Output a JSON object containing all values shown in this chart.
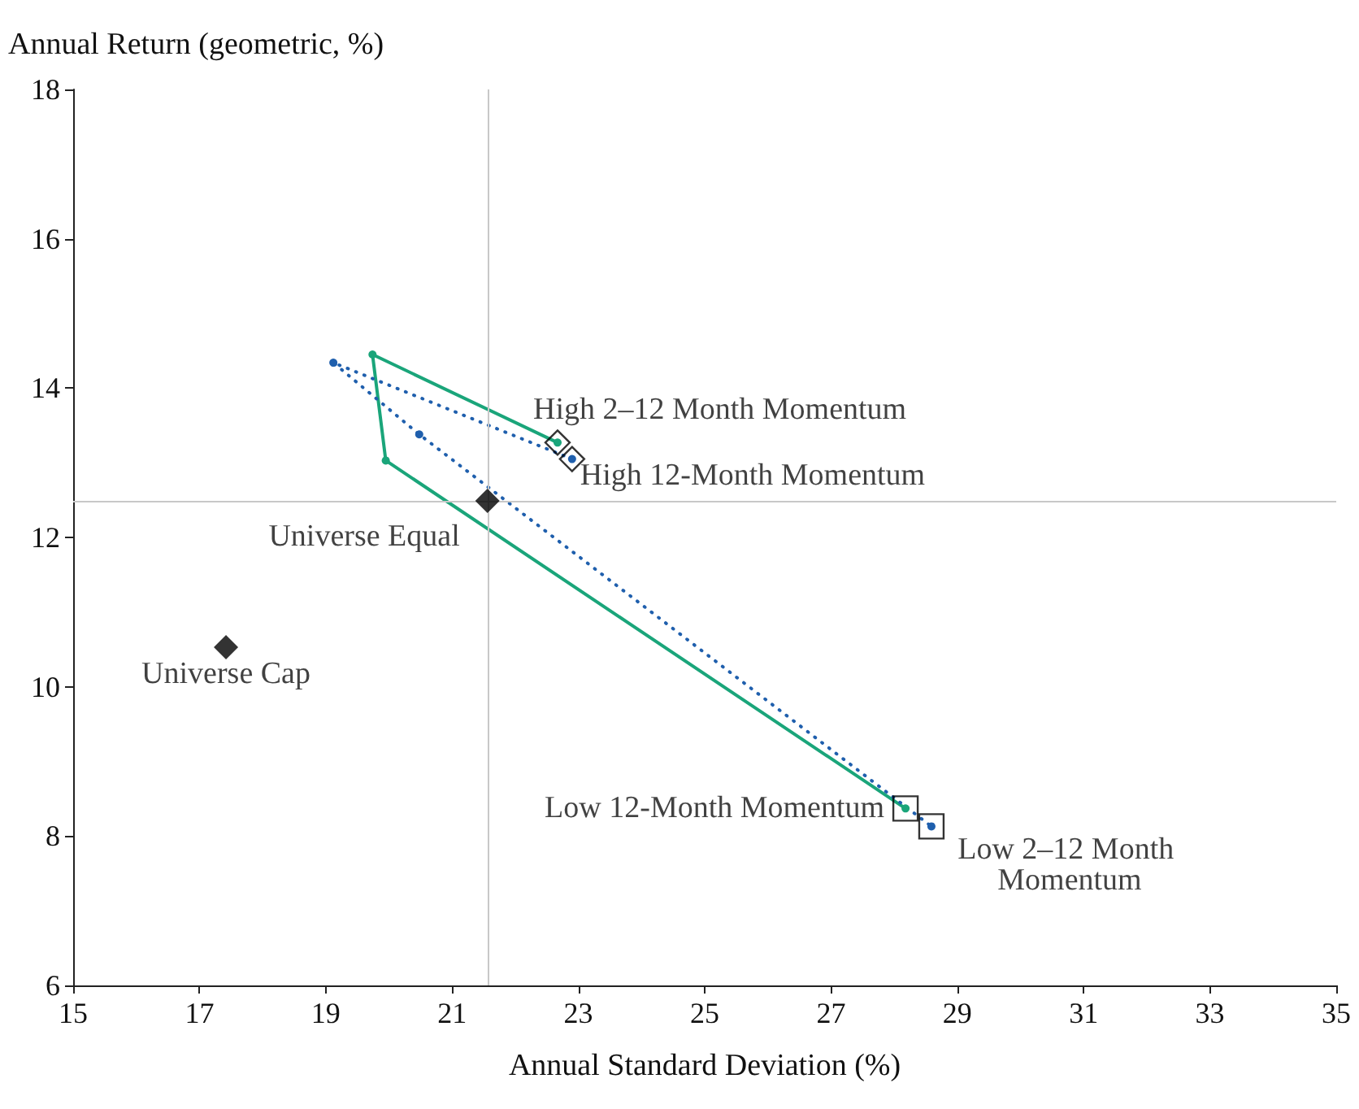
{
  "chart_data": {
    "type": "line",
    "xlabel": "Annual Standard Deviation (%)",
    "ylabel": "Annual Return (geometric, %)",
    "xlim": [
      15,
      35
    ],
    "xticks": [
      15,
      17,
      19,
      21,
      23,
      25,
      27,
      29,
      31,
      33,
      35
    ],
    "ylim": [
      6,
      18
    ],
    "yticks": [
      6,
      8,
      10,
      12,
      14,
      16,
      18
    ],
    "grid": false,
    "series": [
      {
        "type": "line",
        "color": "#1aa57a",
        "line_style": "solid",
        "marker": "circle",
        "x": [
          22.67,
          19.74,
          19.95,
          28.18
        ],
        "values": [
          13.27,
          14.45,
          13.03,
          8.37
        ]
      },
      {
        "type": "line",
        "color": "#1f5fad",
        "line_style": "dotted",
        "marker": "circle",
        "x": [
          22.9,
          19.12,
          20.48,
          28.59
        ],
        "values": [
          13.05,
          14.34,
          13.38,
          8.13
        ]
      },
      {
        "type": "scatter",
        "color": "#000000",
        "marker": "diamond",
        "x": [
          21.56,
          17.42
        ],
        "values": [
          12.49,
          10.53
        ]
      },
      {
        "type": "scatter",
        "color": "#000000",
        "marker": "diamond",
        "x": [
          22.67,
          22.9
        ],
        "values": [
          13.27,
          13.05
        ]
      },
      {
        "type": "scatter",
        "color": "#000000",
        "marker": "square",
        "x": [
          28.18,
          28.59
        ],
        "values": [
          8.37,
          8.13
        ]
      }
    ],
    "ref_lines": [
      {
        "axis": "x",
        "value": 21.56,
        "color": "#c8c8c8"
      },
      {
        "axis": "y",
        "value": 12.49,
        "color": "#c8c8c8"
      }
    ],
    "annotations": [
      {
        "text": "High 2–12 Month Momentum",
        "x": 22.67,
        "y": 13.27
      },
      {
        "text": "High 12-Month Momentum",
        "x": 22.9,
        "y": 13.05
      },
      {
        "text": "Universe Equal",
        "x": 21.56,
        "y": 12.49
      },
      {
        "text": "Universe Cap",
        "x": 17.42,
        "y": 10.53
      },
      {
        "text": "Low 12-Month Momentum",
        "x": 28.18,
        "y": 8.37
      },
      {
        "text": "Low 2–12 Month Momentum",
        "x": 28.59,
        "y": 8.13
      }
    ]
  }
}
